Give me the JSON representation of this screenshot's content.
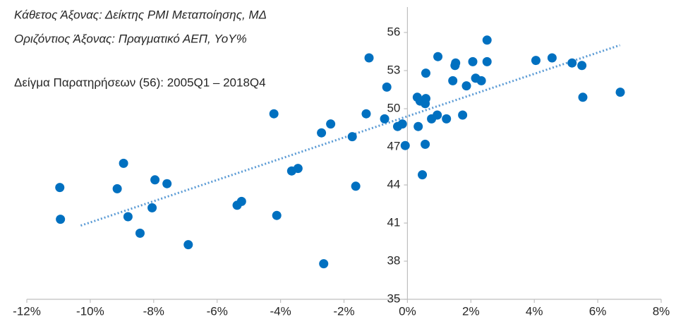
{
  "chart_data": {
    "type": "scatter",
    "annotations": [
      "Κάθετος Άξονας: Δείκτης PMI Μεταποίησης, ΜΔ",
      "Οριζόντιος Άξονας: Πραγματικό ΑΕΠ, YoY%",
      "Δείγμα Παρατηρήσεων (56): 2005Q1 – 2018Q4"
    ],
    "color": "#0070c0",
    "x": [
      -10.96,
      -10.94,
      -9.15,
      -8.95,
      -8.81,
      -8.43,
      -8.05,
      -7.96,
      -7.58,
      -6.91,
      -5.37,
      -5.23,
      -4.21,
      -4.12,
      -3.65,
      -3.45,
      -2.71,
      -2.64,
      -2.42,
      -1.74,
      -1.63,
      -1.3,
      -1.21,
      -0.65,
      -0.72,
      -0.31,
      -0.16,
      -0.07,
      0.31,
      0.34,
      0.4,
      0.47,
      0.56,
      0.56,
      0.58,
      0.58,
      0.76,
      0.94,
      0.96,
      1.23,
      1.43,
      1.52,
      1.5,
      1.74,
      1.86,
      2.06,
      2.15,
      2.33,
      2.51,
      2.51,
      4.05,
      4.56,
      5.19,
      5.5,
      5.53,
      6.71
    ],
    "values": [
      43.8,
      41.3,
      43.7,
      45.7,
      41.5,
      40.2,
      42.2,
      44.4,
      44.1,
      39.3,
      42.4,
      42.7,
      49.6,
      41.6,
      45.1,
      45.3,
      48.1,
      37.8,
      48.8,
      47.8,
      43.9,
      49.6,
      54.0,
      51.7,
      49.2,
      48.6,
      48.8,
      47.1,
      50.9,
      48.6,
      50.6,
      44.8,
      50.4,
      47.2,
      50.8,
      52.8,
      49.2,
      49.5,
      54.1,
      49.2,
      52.2,
      53.6,
      53.4,
      49.5,
      51.8,
      53.7,
      52.4,
      52.2,
      53.7,
      55.4,
      53.8,
      54.0,
      53.6,
      53.4,
      50.9,
      51.3
    ],
    "trendline": {
      "x": [
        -10.3,
        6.7
      ],
      "values": [
        40.8,
        55.0
      ],
      "color": "#5b9bd5"
    },
    "xlim": [
      -12,
      8
    ],
    "xticks": [
      {
        "value": -12,
        "label": "-12%"
      },
      {
        "value": -10,
        "label": "-10%"
      },
      {
        "value": -8,
        "label": "-8%"
      },
      {
        "value": -6,
        "label": "-6%"
      },
      {
        "value": -4,
        "label": "-4%"
      },
      {
        "value": -2,
        "label": "-2%"
      },
      {
        "value": 0,
        "label": "0%"
      },
      {
        "value": 2,
        "label": "2%"
      },
      {
        "value": 4,
        "label": "4%"
      },
      {
        "value": 6,
        "label": "6%"
      },
      {
        "value": 8,
        "label": "8%"
      }
    ],
    "ylim": [
      35,
      58
    ],
    "yticks": [
      35,
      38,
      41,
      44,
      47,
      50,
      53,
      56
    ]
  }
}
